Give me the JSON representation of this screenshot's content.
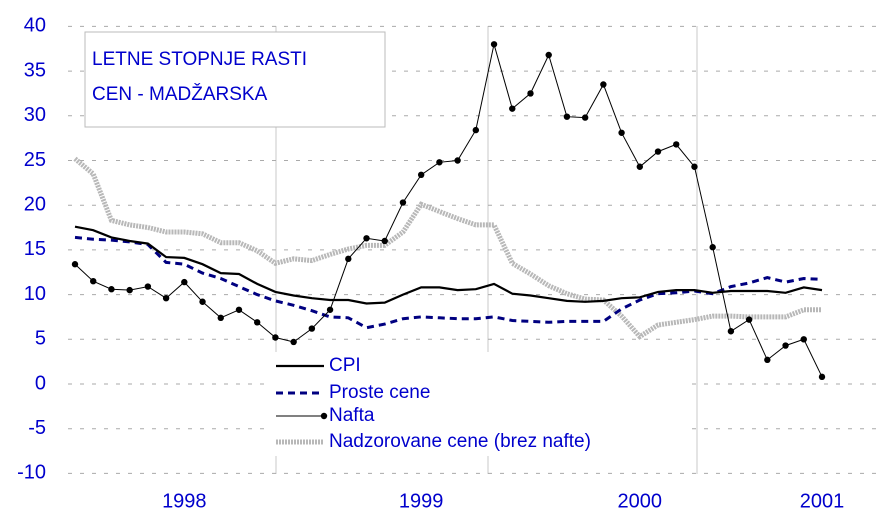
{
  "chart_data": {
    "type": "line",
    "title": [
      "LETNE STOPNJE RASTI",
      "CEN  - MADŽARSKA"
    ],
    "categories": [
      null,
      null,
      null,
      null,
      null,
      null,
      "1998",
      null,
      null,
      null,
      null,
      null,
      null,
      null,
      null,
      null,
      null,
      null,
      null,
      "1999",
      null,
      null,
      null,
      null,
      null,
      null,
      null,
      null,
      null,
      null,
      null,
      "2000",
      null,
      null,
      null,
      null,
      null,
      null,
      null,
      null,
      null,
      "2001"
    ],
    "series": [
      {
        "name": "CPI",
        "color": "#000000",
        "style": "solid",
        "values": [
          17.6,
          17.2,
          16.4,
          16.0,
          15.7,
          14.2,
          14.1,
          13.4,
          12.4,
          12.3,
          11.2,
          10.3,
          9.9,
          9.6,
          9.4,
          9.4,
          9.0,
          9.1,
          10.0,
          10.8,
          10.8,
          10.5,
          10.6,
          11.2,
          10.1,
          9.9,
          9.6,
          9.3,
          9.2,
          9.3,
          9.6,
          9.7,
          10.3,
          10.5,
          10.5,
          10.2,
          10.4,
          10.4,
          10.4,
          10.2,
          10.8,
          10.5
        ]
      },
      {
        "name": "Proste cene",
        "color": "#000080",
        "style": "dashed",
        "values": [
          16.4,
          16.2,
          16.1,
          15.9,
          15.6,
          13.6,
          13.4,
          12.4,
          11.8,
          10.9,
          10.0,
          9.3,
          8.8,
          8.2,
          7.5,
          7.4,
          6.3,
          6.7,
          7.3,
          7.5,
          7.4,
          7.3,
          7.3,
          7.5,
          7.1,
          7.0,
          6.9,
          7.0,
          7.0,
          7.0,
          8.4,
          9.4,
          10.1,
          10.2,
          10.4,
          10.1,
          10.9,
          11.3,
          11.9,
          11.4,
          11.8,
          11.7
        ]
      },
      {
        "name": "Nafta",
        "color": "#000000",
        "style": "markers",
        "values": [
          13.4,
          11.5,
          10.6,
          10.5,
          10.9,
          9.6,
          11.4,
          9.2,
          7.4,
          8.3,
          6.9,
          5.2,
          4.7,
          6.2,
          8.3,
          14.0,
          16.3,
          16.0,
          20.3,
          23.4,
          24.8,
          25.0,
          28.4,
          38.0,
          30.8,
          32.5,
          36.8,
          29.9,
          29.8,
          33.5,
          28.1,
          24.3,
          26.0,
          26.8,
          24.3,
          15.3,
          5.9,
          7.2,
          2.7,
          4.3,
          5.0,
          0.8
        ]
      },
      {
        "name": "Nadzorovane cene (brez nafte)",
        "color": "#b8b8b8",
        "style": "dotted",
        "values": [
          25.2,
          23.5,
          18.3,
          17.8,
          17.5,
          17.0,
          17.0,
          16.8,
          15.8,
          15.8,
          14.9,
          13.5,
          14.0,
          13.8,
          14.5,
          15.1,
          15.5,
          15.5,
          17.0,
          20.1,
          19.3,
          18.5,
          17.8,
          17.8,
          13.5,
          12.3,
          11.0,
          10.1,
          9.5,
          9.4,
          7.6,
          5.3,
          6.6,
          6.9,
          7.2,
          7.6,
          7.6,
          7.5,
          7.5,
          7.5,
          8.3,
          8.3
        ]
      }
    ],
    "ylim": [
      -10,
      40
    ],
    "yticks": [
      -10,
      -5,
      0,
      5,
      10,
      15,
      20,
      25,
      30,
      35,
      40
    ],
    "grid": true
  }
}
